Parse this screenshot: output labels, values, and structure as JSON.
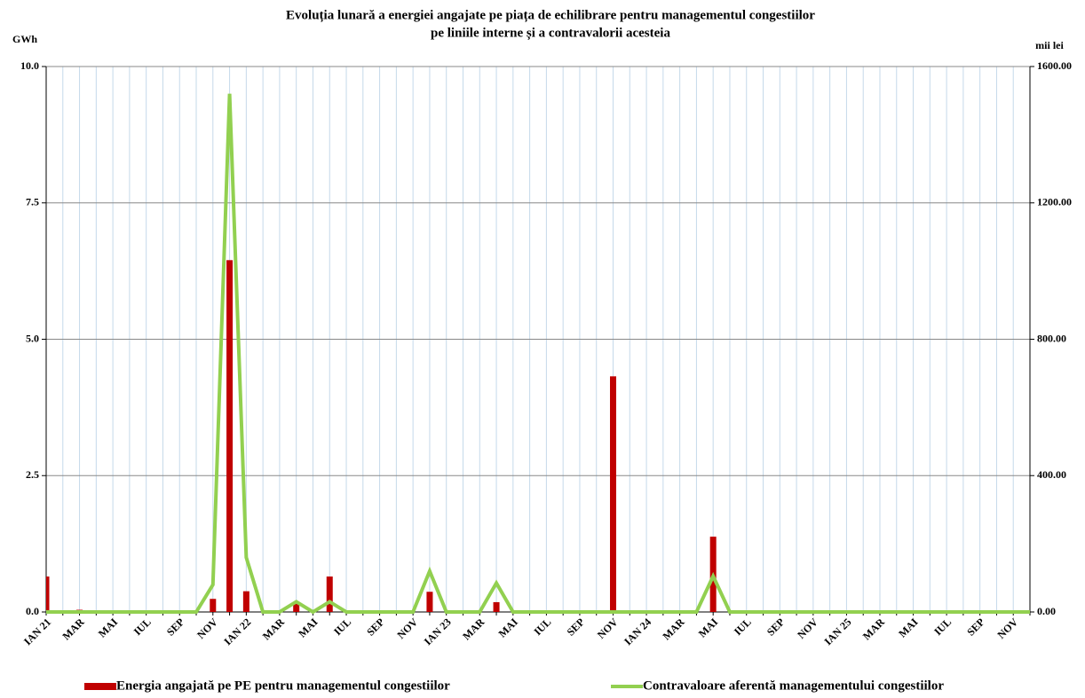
{
  "chart_data": {
    "type": "bar-line",
    "title": [
      "Evoluția lunară a energiei angajate pe piața de echilibrare pentru managementul congestiilor",
      "pe liniile interne și a contravalorii acesteia"
    ],
    "y_label": "GWh",
    "y2_label": "mii lei",
    "categories": [
      "IAN 21",
      null,
      "MAR",
      null,
      "MAI",
      null,
      "IUL",
      null,
      "SEP",
      null,
      "NOV",
      null,
      "IAN 22",
      null,
      "MAR",
      null,
      "MAI",
      null,
      "IUL",
      null,
      "SEP",
      null,
      "NOV",
      null,
      "IAN 23",
      null,
      "MAR",
      null,
      "MAI",
      null,
      "IUL",
      null,
      "SEP",
      null,
      "NOV",
      null,
      "IAN 24",
      null,
      "MAR",
      null,
      "MAI",
      null,
      "IUL",
      null,
      "SEP",
      null,
      "NOV",
      null,
      "IAN 25",
      null,
      "MAR",
      null,
      "MAI",
      null,
      "IUL",
      null,
      "SEP",
      null,
      "NOV",
      null
    ],
    "series": [
      {
        "name": "Energia angajată pe PE pentru managementul congestiilor",
        "type": "bar",
        "color": "#c00000",
        "values": [
          0.65,
          0,
          0.04,
          0,
          0,
          0,
          0,
          0,
          0,
          0,
          0.24,
          6.45,
          0.38,
          0,
          0,
          0.15,
          0,
          0.65,
          0,
          0,
          0,
          0,
          0,
          0.37,
          0,
          0,
          0,
          0.18,
          0,
          0,
          0,
          0,
          0,
          0,
          4.32,
          0,
          0,
          0,
          0,
          0,
          1.38,
          0,
          0,
          0,
          0,
          0,
          0,
          0,
          0,
          0,
          0,
          0,
          0,
          0,
          0,
          0,
          0,
          0,
          0,
          0
        ]
      },
      {
        "name": "Contravaloare aferentă managementului congestiilor",
        "type": "line",
        "axis": "y2",
        "color": "#92d050",
        "values": [
          0,
          0,
          0,
          0,
          0,
          0,
          0,
          0,
          0,
          0,
          80,
          1520,
          160,
          0,
          0,
          30,
          0,
          30,
          0,
          0,
          0,
          0,
          0,
          120,
          0,
          0,
          0,
          85,
          0,
          0,
          0,
          0,
          0,
          0,
          0,
          0,
          0,
          0,
          0,
          0,
          105,
          0,
          0,
          0,
          0,
          0,
          0,
          0,
          0,
          0,
          0,
          0,
          0,
          0,
          0,
          0,
          0,
          0,
          0,
          0
        ]
      }
    ],
    "ylim": [
      0,
      10
    ],
    "yticks": [
      {
        "value": 0,
        "label": "0.0"
      },
      {
        "value": 2.5,
        "label": "2.5"
      },
      {
        "value": 5,
        "label": "5.0"
      },
      {
        "value": 7.5,
        "label": "7.5"
      },
      {
        "value": 10,
        "label": "10.0"
      }
    ],
    "y2lim": [
      0,
      1600
    ],
    "y2ticks": [
      {
        "value": 0,
        "label": "0.00"
      },
      {
        "value": 400,
        "label": "400.00"
      },
      {
        "value": 800,
        "label": "800.00"
      },
      {
        "value": 1200,
        "label": "1200.00"
      },
      {
        "value": 1600,
        "label": "1600.00"
      }
    ],
    "grid": true,
    "legend": "bottom"
  }
}
